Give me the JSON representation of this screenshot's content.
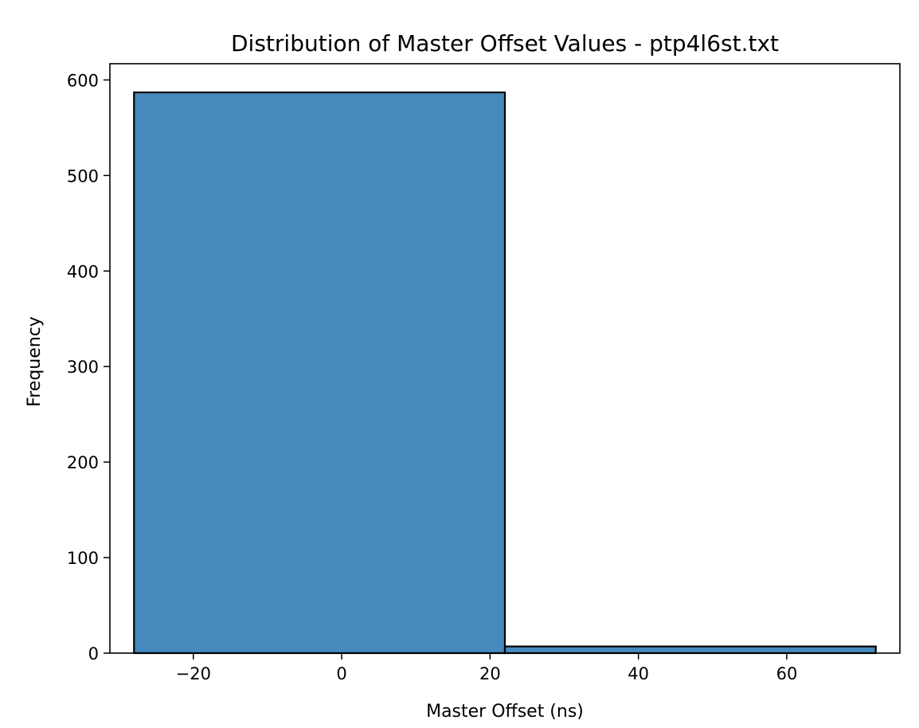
{
  "chart_data": {
    "type": "bar",
    "title": "Distribution of Master Offset Values - ptp4l6st.txt",
    "xlabel": "Master Offset (ns)",
    "ylabel": "Frequency",
    "xlim": [
      -31.25,
      75.25
    ],
    "ylim": [
      0,
      617
    ],
    "x_ticks": [
      -20,
      0,
      20,
      40,
      60
    ],
    "x_tick_labels": [
      "−20",
      "0",
      "20",
      "40",
      "60"
    ],
    "y_ticks": [
      0,
      100,
      200,
      300,
      400,
      500,
      600
    ],
    "y_tick_labels": [
      "0",
      "100",
      "200",
      "300",
      "400",
      "500",
      "600"
    ],
    "bins": [
      {
        "x0": -28,
        "x1": 22,
        "value": 587
      },
      {
        "x0": 22,
        "x1": 72,
        "value": 7
      }
    ],
    "bar_color": "#4589bd",
    "grid": false,
    "legend": "none"
  }
}
